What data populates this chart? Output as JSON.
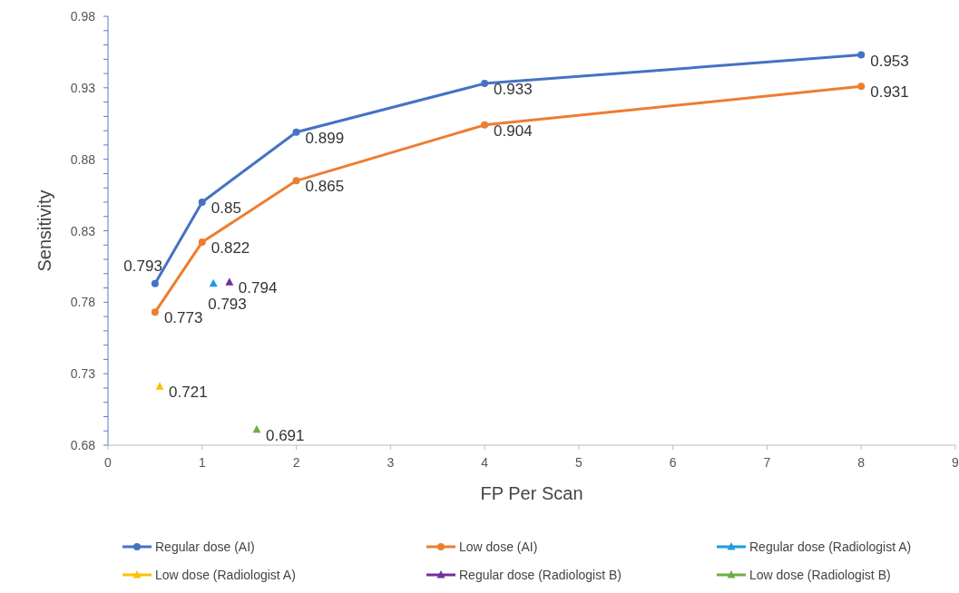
{
  "chart_data": {
    "type": "line",
    "xlabel": "FP Per Scan",
    "ylabel": "Sensitivity",
    "xlim": [
      0,
      9
    ],
    "xticks": [
      0,
      1,
      2,
      3,
      4,
      5,
      6,
      7,
      8,
      9
    ],
    "ylim": [
      0.68,
      0.98
    ],
    "yticks": [
      0.68,
      {
        "value": 0.69,
        "label": null
      },
      {
        "value": 0.7,
        "label": null
      },
      {
        "value": 0.71,
        "label": null
      },
      {
        "value": 0.72,
        "label": null
      },
      0.73,
      {
        "value": 0.74,
        "label": null
      },
      {
        "value": 0.75,
        "label": null
      },
      {
        "value": 0.76,
        "label": null
      },
      {
        "value": 0.77,
        "label": null
      },
      0.78,
      {
        "value": 0.79,
        "label": null
      },
      {
        "value": 0.8,
        "label": null
      },
      {
        "value": 0.81,
        "label": null
      },
      {
        "value": 0.82,
        "label": null
      },
      0.83,
      {
        "value": 0.84,
        "label": null
      },
      {
        "value": 0.85,
        "label": null
      },
      {
        "value": 0.86,
        "label": null
      },
      {
        "value": 0.87,
        "label": null
      },
      0.88,
      {
        "value": 0.89,
        "label": null
      },
      {
        "value": 0.9,
        "label": null
      },
      {
        "value": 0.91,
        "label": null
      },
      {
        "value": 0.92,
        "label": null
      },
      0.93,
      {
        "value": 0.94,
        "label": null
      },
      {
        "value": 0.95,
        "label": null
      },
      {
        "value": 0.96,
        "label": null
      },
      {
        "value": 0.97,
        "label": null
      },
      0.98
    ],
    "grid": false,
    "legend": "bottom",
    "data_labels": true,
    "series": [
      {
        "name": "Regular dose (AI)",
        "marker": "circle",
        "color": "#4472c4",
        "x": [
          0.5,
          1,
          2,
          4,
          8
        ],
        "values": [
          0.793,
          0.85,
          0.899,
          0.933,
          0.953
        ]
      },
      {
        "name": "Low dose (AI)",
        "marker": "circle",
        "color": "#ed7d31",
        "x": [
          0.5,
          1,
          2,
          4,
          8
        ],
        "values": [
          0.773,
          0.822,
          0.865,
          0.904,
          0.931
        ]
      },
      {
        "name": "Regular dose (Radiologist A)",
        "type": "scatter",
        "marker": "triangle",
        "color": "#1f9bde",
        "x": [
          1.12
        ],
        "values": [
          0.793
        ]
      },
      {
        "name": "Low dose (Radiologist A)",
        "type": "scatter",
        "marker": "triangle",
        "color": "#ffc000",
        "x": [
          0.55
        ],
        "values": [
          0.721
        ]
      },
      {
        "name": "Regular dose (Radiologist B)",
        "type": "scatter",
        "marker": "triangle",
        "color": "#7030a0",
        "x": [
          1.29
        ],
        "values": [
          0.794
        ]
      },
      {
        "name": "Low dose (Radiologist B)",
        "type": "scatter",
        "marker": "triangle",
        "color": "#70ad47",
        "x": [
          1.58
        ],
        "values": [
          0.691
        ]
      }
    ]
  }
}
